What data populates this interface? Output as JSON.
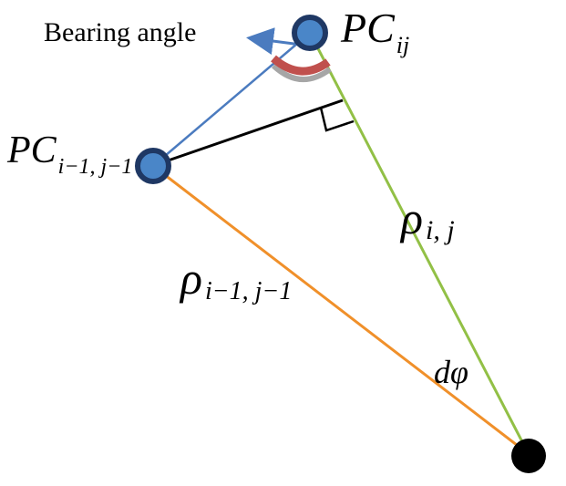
{
  "labels": {
    "bearing_angle": "Bearing angle",
    "pc_ij": {
      "main": "PC",
      "sub": "ij"
    },
    "pc_prev": {
      "main": "PC",
      "sub": "i−1, j−1"
    },
    "rho_ij": {
      "main": "ρ",
      "sub": "i, j"
    },
    "rho_prev": {
      "main": "ρ",
      "sub": "i−1, j−1"
    },
    "d_phi": "dφ"
  },
  "colors": {
    "green_ray": "#92c046",
    "orange_ray": "#f0902a",
    "blue_line": "#4b7bbf",
    "black_line": "#000000",
    "arc_red": "#c0504d",
    "arc_gray": "#a6a6a6",
    "node_fill": "#4a86c8",
    "node_stroke": "#1f3864"
  }
}
